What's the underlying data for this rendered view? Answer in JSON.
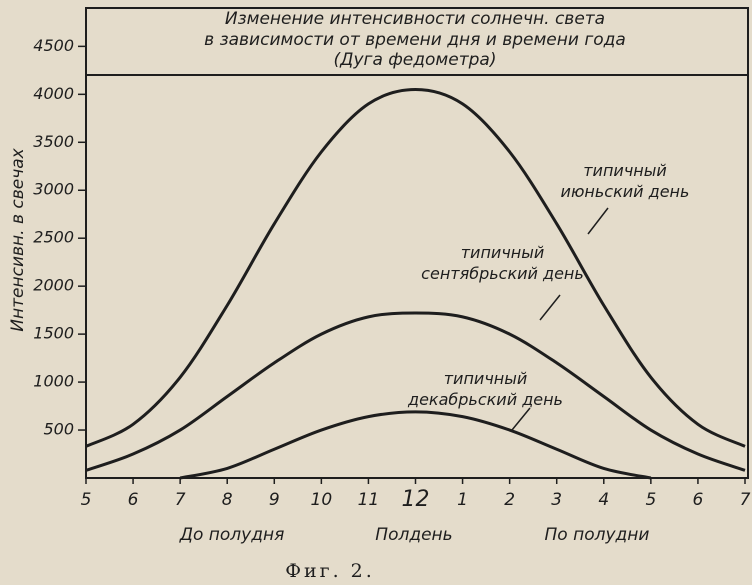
{
  "chart_data": {
    "type": "line",
    "title": [
      "Изменение интенсивности солнечн. света",
      "в зависимости от времени дня и времени года"
    ],
    "subtitle": "(Дуга федометра)",
    "ylabel": "Интенсивн. в свечах",
    "categories": [
      "5",
      "6",
      "7",
      "8",
      "9",
      "10",
      "11",
      "12",
      "1",
      "2",
      "3",
      "4",
      "5",
      "6",
      "7"
    ],
    "x_annotations": [
      "До полудня",
      "Полдень",
      "По полудни"
    ],
    "series": [
      {
        "name": "типичный июньский день",
        "color": "#1e1e1e",
        "values": [
          330,
          560,
          1050,
          1800,
          2650,
          3400,
          3900,
          4050,
          3900,
          3400,
          2650,
          1800,
          1050,
          560,
          330
        ]
      },
      {
        "name": "типичный сентябрьский день",
        "color": "#1e1e1e",
        "values": [
          80,
          250,
          500,
          850,
          1200,
          1500,
          1680,
          1720,
          1680,
          1500,
          1200,
          850,
          500,
          250,
          80
        ]
      },
      {
        "name": "типичный декабрьский день",
        "color": "#1e1e1e",
        "values": [
          null,
          null,
          0,
          100,
          300,
          500,
          640,
          690,
          640,
          500,
          300,
          100,
          0,
          null,
          null
        ]
      }
    ],
    "ylim": [
      0,
      4900
    ],
    "yticks": [
      500,
      1000,
      1500,
      2000,
      2500,
      3000,
      3500,
      4000,
      4500
    ],
    "caption": "Фиг. 2."
  }
}
